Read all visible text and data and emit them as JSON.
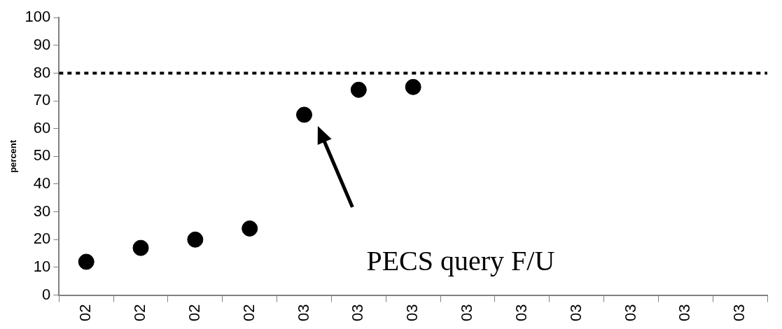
{
  "chart_data": {
    "type": "scatter",
    "ylabel": "percent",
    "categories": [
      "02",
      "02",
      "02",
      "02",
      "03",
      "03",
      "03",
      "03",
      "03",
      "03",
      "03",
      "03",
      "03"
    ],
    "series": [
      {
        "color": "#000000",
        "values": [
          12,
          17,
          20,
          24,
          65,
          74,
          75,
          null,
          null,
          null,
          null,
          null,
          null
        ]
      }
    ],
    "ylim": [
      0,
      100
    ],
    "yticks": [
      0,
      10,
      20,
      30,
      40,
      50,
      60,
      70,
      80,
      90,
      100
    ],
    "grid": false,
    "legend": false,
    "marker": "circle",
    "ref_lines": [
      {
        "axis": "y",
        "value": 80,
        "color": "#000000",
        "line_style": "dotted"
      }
    ],
    "annotations": [
      "PECS query F/U"
    ]
  }
}
